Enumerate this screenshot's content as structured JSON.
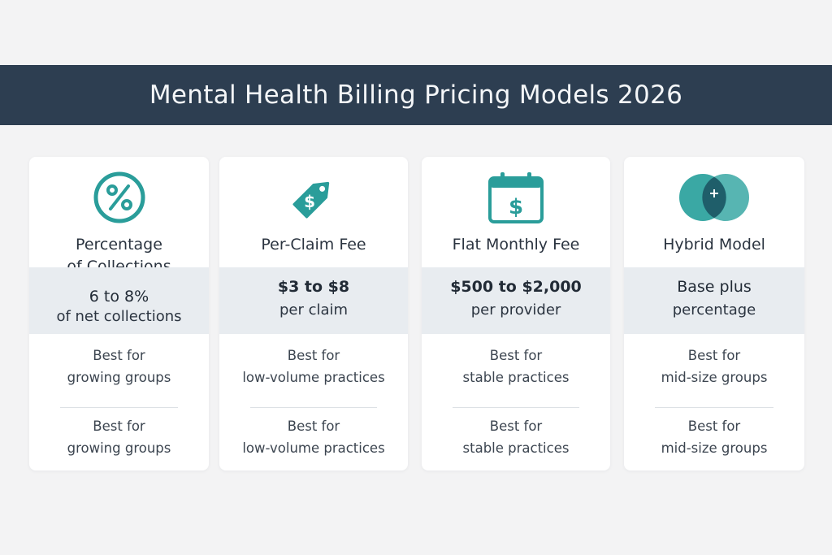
{
  "header": {
    "title": "Mental Health Billing Pricing Models 2026"
  },
  "colors": {
    "banner": "#2d3e51",
    "accent": "#2a9d9a",
    "band": "#e8ecf0"
  },
  "cards": [
    {
      "icon": "percent-icon",
      "title_line1": "Percentage",
      "title_line2": "of Collections",
      "price_main": "6 to 8%",
      "price_sub": "of net collections",
      "best1_line1": "Best for",
      "best1_line2": "growing groups",
      "best2_line1": "Best for",
      "best2_line2": "growing groups"
    },
    {
      "icon": "price-tag-icon",
      "title_line1": "Per-Claim Fee",
      "price_main": "$3 to $8",
      "price_sub": "per claim",
      "best1_line1": "Best for",
      "best1_line2": "low-volume practices",
      "best2_line1": "Best for",
      "best2_line2": "low-volume practices"
    },
    {
      "icon": "calendar-dollar-icon",
      "title_line1": "Flat Monthly Fee",
      "price_main": "$500 to $2,000",
      "price_sub": "per provider",
      "best1_line1": "Best for",
      "best1_line2": "stable practices",
      "best2_line1": "Best for",
      "best2_line2": "stable practices"
    },
    {
      "icon": "overlapping-circles-icon",
      "title_line1": "Hybrid Model",
      "price_main": "Base plus",
      "price_sub": "percentage",
      "best1_line1": "Best for",
      "best1_line2": "mid-size groups",
      "best2_line1": "Best for",
      "best2_line2": "mid-size groups"
    }
  ]
}
